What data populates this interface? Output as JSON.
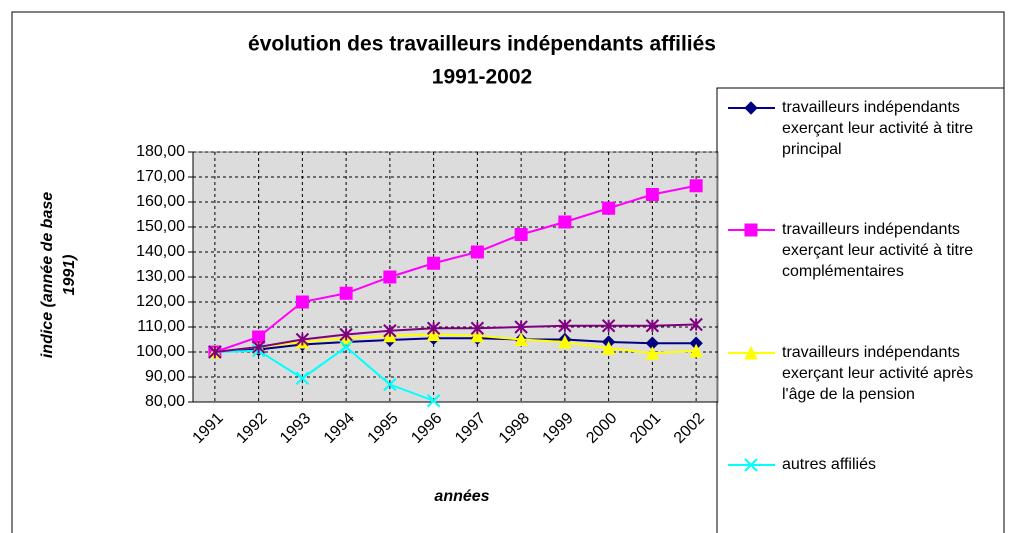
{
  "chart_data": {
    "type": "line",
    "title": "évolution des travailleurs indépendants affiliés",
    "subtitle": "1991-2002",
    "ylabel": [
      "indice (année de base",
      "1991)"
    ],
    "xlabel": "années",
    "categories": [
      "1991",
      "1992",
      "1993",
      "1994",
      "1995",
      "1996",
      "1997",
      "1998",
      "1999",
      "2000",
      "2001",
      "2002"
    ],
    "ylim": [
      80,
      180
    ],
    "yticks": [
      {
        "value": 80,
        "label": "80,00"
      },
      {
        "value": 90,
        "label": "90,00"
      },
      {
        "value": 100,
        "label": "100,00"
      },
      {
        "value": 110,
        "label": "110,00"
      },
      {
        "value": 120,
        "label": "120,00"
      },
      {
        "value": 130,
        "label": "130,00"
      },
      {
        "value": 140,
        "label": "140,00"
      },
      {
        "value": 150,
        "label": "150,00"
      },
      {
        "value": 160,
        "label": "160,00"
      },
      {
        "value": 170,
        "label": "170,00"
      },
      {
        "value": 180,
        "label": "180,00"
      }
    ],
    "grid": true,
    "legend": "right",
    "series": [
      {
        "name": "travailleurs indépendants exerçant leur activité à titre principal",
        "color": "#000080",
        "marker": "diamond",
        "values": [
          100,
          101,
          103,
          104,
          104.8,
          105.5,
          105.5,
          105,
          105,
          104,
          103.5,
          103.5
        ]
      },
      {
        "name": "travailleurs indépendants exerçant leur activité à titre complémentaires",
        "color": "#ff00ff",
        "marker": "square",
        "values": [
          100,
          106,
          120,
          123.5,
          130,
          135.5,
          140,
          147,
          152,
          157.5,
          163,
          166.5
        ]
      },
      {
        "name": "travailleurs indépendants exerçant leur activité après l'âge de la pension",
        "color": "#ffff00",
        "marker": "triangle",
        "values": [
          100,
          102,
          104,
          105.5,
          106.5,
          107,
          106.5,
          105,
          104,
          101.5,
          99.5,
          100.5
        ]
      },
      {
        "name": "autres affiliés",
        "color": "#00ffff",
        "marker": "x",
        "values": [
          100,
          100.5,
          89.5,
          102,
          87,
          80.5,
          null,
          null,
          null,
          null,
          null,
          null
        ]
      },
      {
        "color": "#800080",
        "marker": "star",
        "values": [
          100,
          102,
          105,
          107,
          108.5,
          109.5,
          109.5,
          110,
          110.5,
          110.5,
          110.5,
          111
        ]
      }
    ]
  }
}
